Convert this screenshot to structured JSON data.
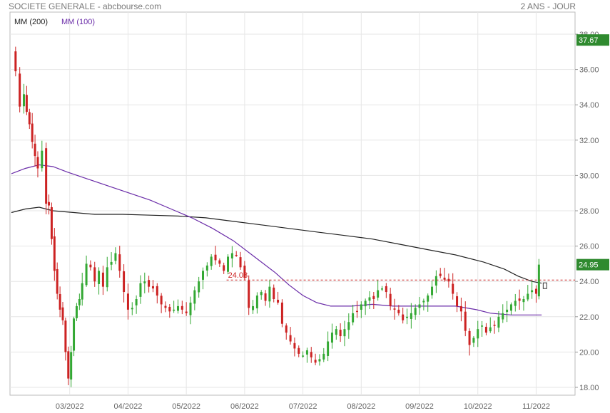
{
  "header": {
    "title": "SOCIETE GENERALE - abcbourse.com",
    "period": "2 ANS - JOUR"
  },
  "legend": [
    {
      "label": "MM (200)",
      "color": "#222222"
    },
    {
      "label": "MM (100)",
      "color": "#6a2ca8"
    }
  ],
  "chart_data": {
    "type": "candlestick",
    "y_ticks": [
      "38.00",
      "36.00",
      "34.00",
      "32.00",
      "30.00",
      "28.00",
      "26.00",
      "24.00",
      "22.00",
      "20.00",
      "18.00"
    ],
    "ylim": [
      17.5,
      38.5
    ],
    "x_ticks": [
      {
        "label": "03/2022",
        "day": 42
      },
      {
        "label": "04/2022",
        "day": 84
      },
      {
        "label": "05/2022",
        "day": 126
      },
      {
        "label": "06/2022",
        "day": 168
      },
      {
        "label": "07/2022",
        "day": 210
      },
      {
        "label": "08/2022",
        "day": 252
      },
      {
        "label": "09/2022",
        "day": 294
      },
      {
        "label": "10/2022",
        "day": 336
      },
      {
        "label": "11/2022",
        "day": 378
      }
    ],
    "day_range": [
      0,
      405
    ],
    "last_price": {
      "label": "37.67",
      "value": 37.67,
      "color": "#2f8a2f"
    },
    "current_price": {
      "label": "24.95",
      "value": 24.95,
      "color": "#2f8a2f"
    },
    "reference_line": {
      "label": "24.08",
      "value": 24.08,
      "color": "#cc2222"
    },
    "up_color": "#33a833",
    "down_color": "#cc2222",
    "close_path": [
      [
        1,
        36.9
      ],
      [
        3,
        35.9
      ],
      [
        6,
        33.9
      ],
      [
        9,
        34.6
      ],
      [
        11,
        33.6
      ],
      [
        13,
        32.9
      ],
      [
        15,
        31.9
      ],
      [
        17,
        31.1
      ],
      [
        19,
        30.4
      ],
      [
        22,
        31.4
      ],
      [
        25,
        28.4
      ],
      [
        27,
        28.3
      ],
      [
        29,
        26.4
      ],
      [
        31,
        24.6
      ],
      [
        33,
        23.3
      ],
      [
        35,
        22.4
      ],
      [
        37,
        21.8
      ],
      [
        39,
        20.0
      ],
      [
        41,
        18.5
      ],
      [
        43,
        20.0
      ],
      [
        45,
        21.9
      ],
      [
        47,
        22.6
      ],
      [
        49,
        23.0
      ],
      [
        51,
        23.9
      ],
      [
        54,
        25.0
      ],
      [
        57,
        24.8
      ],
      [
        60,
        24.0
      ],
      [
        63,
        24.6
      ],
      [
        66,
        23.7
      ],
      [
        69,
        24.8
      ],
      [
        72,
        25.1
      ],
      [
        75,
        25.6
      ],
      [
        78,
        24.6
      ],
      [
        81,
        23.4
      ],
      [
        84,
        22.4
      ],
      [
        87,
        22.5
      ],
      [
        90,
        23.0
      ],
      [
        93,
        23.9
      ],
      [
        96,
        24.0
      ],
      [
        99,
        23.7
      ],
      [
        102,
        23.6
      ],
      [
        105,
        23.2
      ],
      [
        108,
        22.7
      ],
      [
        111,
        22.5
      ],
      [
        114,
        22.3
      ],
      [
        117,
        22.4
      ],
      [
        120,
        22.6
      ],
      [
        123,
        22.4
      ],
      [
        126,
        22.2
      ],
      [
        129,
        22.8
      ],
      [
        132,
        23.5
      ],
      [
        135,
        24.0
      ],
      [
        138,
        24.6
      ],
      [
        141,
        24.9
      ],
      [
        144,
        25.4
      ],
      [
        147,
        25.2
      ],
      [
        150,
        25.0
      ],
      [
        153,
        24.6
      ],
      [
        156,
        25.4
      ],
      [
        159,
        25.6
      ],
      [
        162,
        25.5
      ],
      [
        165,
        24.8
      ],
      [
        168,
        24.2
      ],
      [
        171,
        22.5
      ],
      [
        174,
        22.6
      ],
      [
        177,
        23.2
      ],
      [
        180,
        23.4
      ],
      [
        183,
        22.9
      ],
      [
        186,
        23.7
      ],
      [
        189,
        23.0
      ],
      [
        192,
        22.8
      ],
      [
        195,
        21.6
      ],
      [
        198,
        21.1
      ],
      [
        201,
        20.6
      ],
      [
        204,
        20.2
      ],
      [
        207,
        19.9
      ],
      [
        210,
        19.8
      ],
      [
        213,
        20.1
      ],
      [
        216,
        19.7
      ],
      [
        219,
        19.4
      ],
      [
        222,
        19.6
      ],
      [
        225,
        19.9
      ],
      [
        228,
        20.6
      ],
      [
        231,
        21.1
      ],
      [
        234,
        21.3
      ],
      [
        237,
        20.9
      ],
      [
        240,
        21.3
      ],
      [
        243,
        21.7
      ],
      [
        246,
        22.2
      ],
      [
        249,
        22.3
      ],
      [
        252,
        22.7
      ],
      [
        255,
        22.9
      ],
      [
        258,
        23.1
      ],
      [
        261,
        23.0
      ],
      [
        264,
        23.5
      ],
      [
        267,
        23.6
      ],
      [
        270,
        23.4
      ],
      [
        273,
        22.6
      ],
      [
        276,
        22.4
      ],
      [
        279,
        22.2
      ],
      [
        282,
        21.8
      ],
      [
        285,
        22.0
      ],
      [
        288,
        22.2
      ],
      [
        291,
        22.5
      ],
      [
        294,
        22.7
      ],
      [
        297,
        22.9
      ],
      [
        300,
        23.2
      ],
      [
        303,
        23.7
      ],
      [
        306,
        24.3
      ],
      [
        309,
        24.3
      ],
      [
        312,
        24.1
      ],
      [
        315,
        24.0
      ],
      [
        318,
        23.3
      ],
      [
        321,
        22.6
      ],
      [
        324,
        22.3
      ],
      [
        327,
        21.2
      ],
      [
        330,
        20.4
      ],
      [
        333,
        20.8
      ],
      [
        336,
        21.3
      ],
      [
        339,
        21.5
      ],
      [
        342,
        21.1
      ],
      [
        345,
        21.4
      ],
      [
        348,
        21.5
      ],
      [
        351,
        22.0
      ],
      [
        354,
        22.2
      ],
      [
        357,
        22.4
      ],
      [
        360,
        22.7
      ],
      [
        363,
        22.9
      ],
      [
        366,
        22.9
      ],
      [
        369,
        23.0
      ],
      [
        372,
        23.3
      ],
      [
        375,
        23.5
      ],
      [
        378,
        23.3
      ],
      [
        380,
        24.95
      ]
    ],
    "series": [
      {
        "name": "MM (200)",
        "color": "#222222",
        "points": [
          [
            0,
            27.9
          ],
          [
            10,
            28.1
          ],
          [
            20,
            28.2
          ],
          [
            30,
            28.0
          ],
          [
            45,
            27.9
          ],
          [
            60,
            27.8
          ],
          [
            80,
            27.8
          ],
          [
            100,
            27.75
          ],
          [
            120,
            27.7
          ],
          [
            140,
            27.6
          ],
          [
            160,
            27.4
          ],
          [
            180,
            27.2
          ],
          [
            200,
            27.0
          ],
          [
            220,
            26.8
          ],
          [
            240,
            26.6
          ],
          [
            260,
            26.4
          ],
          [
            280,
            26.1
          ],
          [
            300,
            25.8
          ],
          [
            320,
            25.5
          ],
          [
            340,
            25.1
          ],
          [
            355,
            24.7
          ],
          [
            365,
            24.3
          ],
          [
            375,
            24.0
          ],
          [
            382,
            23.9
          ]
        ]
      },
      {
        "name": "MM (100)",
        "color": "#6a2ca8",
        "points": [
          [
            0,
            30.1
          ],
          [
            10,
            30.4
          ],
          [
            20,
            30.6
          ],
          [
            30,
            30.5
          ],
          [
            40,
            30.2
          ],
          [
            55,
            29.8
          ],
          [
            70,
            29.4
          ],
          [
            85,
            29.0
          ],
          [
            100,
            28.6
          ],
          [
            115,
            28.1
          ],
          [
            130,
            27.6
          ],
          [
            145,
            27.0
          ],
          [
            160,
            26.3
          ],
          [
            175,
            25.4
          ],
          [
            190,
            24.5
          ],
          [
            200,
            23.8
          ],
          [
            210,
            23.2
          ],
          [
            220,
            22.8
          ],
          [
            230,
            22.6
          ],
          [
            245,
            22.6
          ],
          [
            260,
            22.7
          ],
          [
            275,
            22.6
          ],
          [
            290,
            22.6
          ],
          [
            305,
            22.6
          ],
          [
            320,
            22.6
          ],
          [
            335,
            22.4
          ],
          [
            345,
            22.2
          ],
          [
            360,
            22.1
          ],
          [
            375,
            22.1
          ],
          [
            382,
            22.1
          ]
        ]
      }
    ]
  }
}
